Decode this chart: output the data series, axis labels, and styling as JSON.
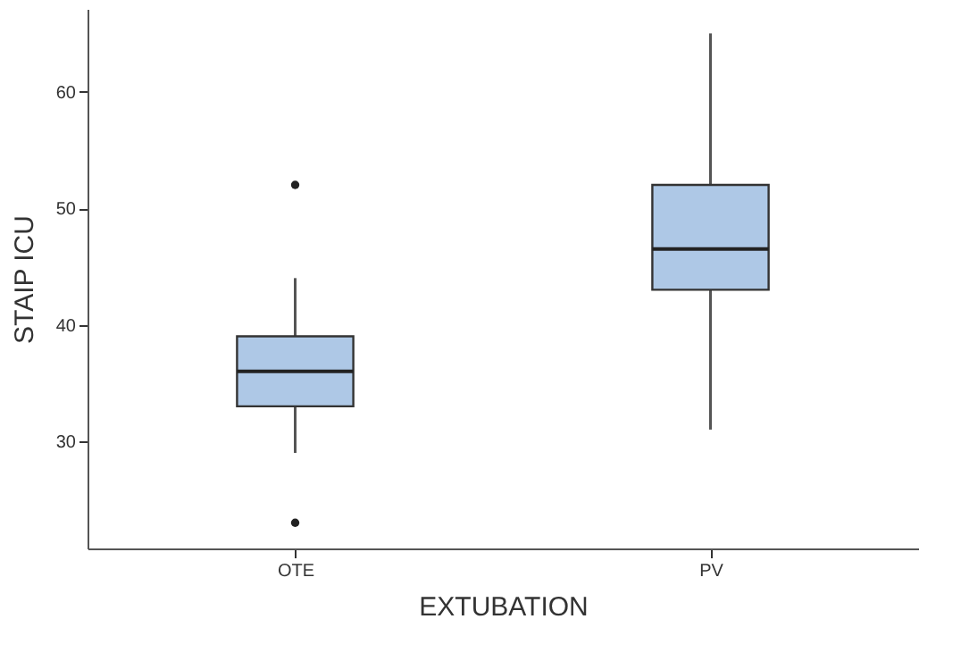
{
  "chart_data": {
    "type": "box",
    "xlabel": "EXTUBATION",
    "ylabel": "STAIP ICU",
    "categories": [
      "OTE",
      "PV"
    ],
    "boxes": [
      {
        "low": 29,
        "q1": 33,
        "median": 36,
        "q3": 39,
        "high": 44,
        "outliers": [
          52,
          23
        ]
      },
      {
        "low": 31,
        "q1": 43,
        "median": 46.5,
        "q3": 52,
        "high": 65
      }
    ],
    "color": "#aec8e6",
    "ylim": [
      20.8,
      67.1
    ],
    "yticks": [
      30,
      40,
      50,
      60
    ],
    "grid": false
  }
}
